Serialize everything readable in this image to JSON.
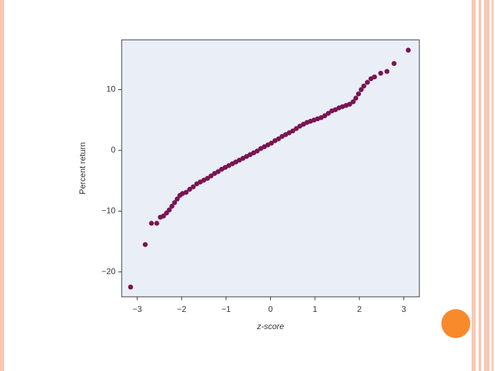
{
  "chart_data": {
    "type": "scatter",
    "x_label": "z-score",
    "y_label": "Percent return",
    "color": "#7a1551",
    "background": "#e9eef7",
    "xlim": [
      -3.35,
      3.35
    ],
    "ylim": [
      -24.1,
      18.2
    ],
    "xticks": [
      {
        "value": -3,
        "label": "−3"
      },
      {
        "value": -2,
        "label": "−2"
      },
      {
        "value": -1,
        "label": "−1"
      },
      0,
      1,
      2,
      3
    ],
    "yticks": [
      {
        "value": -20,
        "label": "−20"
      },
      {
        "value": -10,
        "label": "−10"
      },
      0,
      10
    ],
    "x": [
      -3.15,
      -2.82,
      -2.68,
      -2.56,
      -2.48,
      -2.41,
      -2.34,
      -2.28,
      -2.22,
      -2.16,
      -2.1,
      -2.04,
      -1.98,
      -1.9,
      -1.82,
      -1.74,
      -1.66,
      -1.58,
      -1.5,
      -1.42,
      -1.34,
      -1.26,
      -1.18,
      -1.1,
      -1.02,
      -0.94,
      -0.86,
      -0.78,
      -0.7,
      -0.62,
      -0.54,
      -0.46,
      -0.38,
      -0.3,
      -0.22,
      -0.14,
      -0.06,
      0.02,
      0.1,
      0.18,
      0.26,
      0.34,
      0.42,
      0.5,
      0.58,
      0.66,
      0.74,
      0.82,
      0.9,
      0.98,
      1.06,
      1.14,
      1.22,
      1.3,
      1.38,
      1.46,
      1.54,
      1.62,
      1.7,
      1.78,
      1.86,
      1.92,
      1.98,
      2.04,
      2.1,
      2.18,
      2.26,
      2.34,
      2.48,
      2.62,
      2.78,
      3.1
    ],
    "values": [
      -22.5,
      -15.5,
      -12.0,
      -12.0,
      -11.0,
      -10.8,
      -10.3,
      -9.8,
      -9.2,
      -8.6,
      -8.0,
      -7.4,
      -7.1,
      -6.9,
      -6.4,
      -6.0,
      -5.5,
      -5.2,
      -4.9,
      -4.6,
      -4.2,
      -3.8,
      -3.5,
      -3.1,
      -2.8,
      -2.5,
      -2.2,
      -1.9,
      -1.6,
      -1.3,
      -1.0,
      -0.7,
      -0.4,
      -0.1,
      0.3,
      0.6,
      0.9,
      1.2,
      1.6,
      1.9,
      2.3,
      2.6,
      2.9,
      3.2,
      3.6,
      4.0,
      4.3,
      4.6,
      4.8,
      5.0,
      5.2,
      5.4,
      5.7,
      6.1,
      6.5,
      6.7,
      7.0,
      7.2,
      7.4,
      7.6,
      8.0,
      8.6,
      9.3,
      10.0,
      10.6,
      11.2,
      11.8,
      12.1,
      12.7,
      13.0,
      14.3,
      16.5
    ]
  }
}
